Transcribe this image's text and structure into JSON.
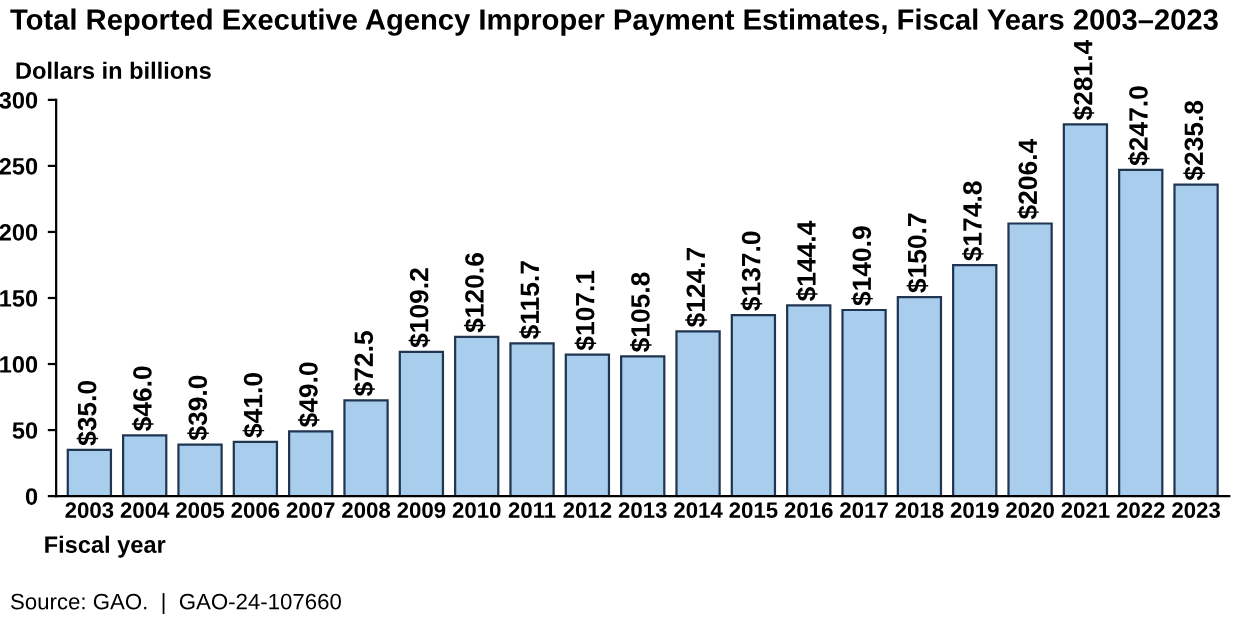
{
  "chart_data": {
    "type": "bar",
    "title": "Total Reported Executive Agency Improper Payment Estimates, Fiscal Years 2003–2023",
    "ylabel": "Dollars in billions",
    "xlabel": "Fiscal year",
    "categories": [
      "2003",
      "2004",
      "2005",
      "2006",
      "2007",
      "2008",
      "2009",
      "2010",
      "2011",
      "2012",
      "2013",
      "2014",
      "2015",
      "2016",
      "2017",
      "2018",
      "2019",
      "2020",
      "2021",
      "2022",
      "2023"
    ],
    "values": [
      35.0,
      46.0,
      39.0,
      41.0,
      49.0,
      72.5,
      109.2,
      120.6,
      115.7,
      107.1,
      105.8,
      124.7,
      137.0,
      144.4,
      140.9,
      150.7,
      174.8,
      206.4,
      281.4,
      247.0,
      235.8
    ],
    "value_labels": [
      "$35.0",
      "$46.0",
      "$39.0",
      "$41.0",
      "$49.0",
      "$72.5",
      "$109.2",
      "$120.6",
      "$115.7",
      "$107.1",
      "$105.8",
      "$124.7",
      "$137.0",
      "$144.4",
      "$140.9",
      "$150.7",
      "$174.8",
      "$206.4",
      "$281.4",
      "$247.0",
      "$235.8"
    ],
    "color": "#a9cdec",
    "ylim": [
      0,
      300
    ],
    "yticks": [
      0,
      50,
      100,
      150,
      200,
      250,
      300
    ],
    "grid": false,
    "legend": false,
    "annotations": [
      "Source: GAO.  |  GAO-24-107660"
    ]
  }
}
